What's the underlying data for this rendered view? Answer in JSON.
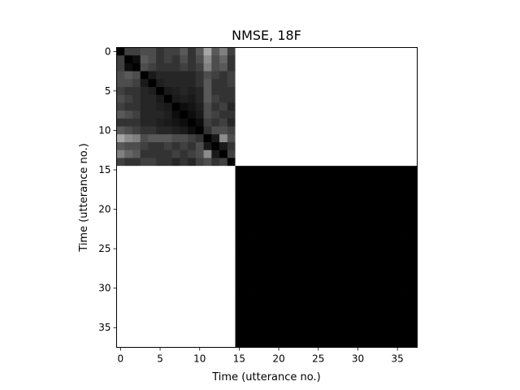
{
  "chart_data": {
    "type": "heatmap",
    "title": "NMSE, 18F",
    "xlabel": "Time (utterance no.)",
    "ylabel": "Time (utterance no.)",
    "n": 38,
    "xlim": [
      -0.5,
      37.5
    ],
    "ylim": [
      37.5,
      -0.5
    ],
    "x_ticks": [
      0,
      5,
      10,
      15,
      20,
      25,
      30,
      35
    ],
    "y_ticks": [
      0,
      5,
      10,
      15,
      20,
      25,
      30,
      35
    ],
    "colormap": "gray",
    "value_range": [
      0,
      1
    ],
    "block_size": 15,
    "block_matrix": [
      [
        0.0,
        0.25,
        0.25,
        0.3,
        0.3,
        0.2,
        0.25,
        0.25,
        0.35,
        0.2,
        0.35,
        0.65,
        0.35,
        0.5,
        0.25
      ],
      [
        0.25,
        0.0,
        0.05,
        0.35,
        0.3,
        0.2,
        0.25,
        0.2,
        0.3,
        0.2,
        0.3,
        0.55,
        0.3,
        0.4,
        0.2
      ],
      [
        0.25,
        0.05,
        0.0,
        0.3,
        0.25,
        0.2,
        0.2,
        0.2,
        0.25,
        0.2,
        0.25,
        0.5,
        0.3,
        0.35,
        0.2
      ],
      [
        0.3,
        0.35,
        0.3,
        0.0,
        0.1,
        0.15,
        0.15,
        0.15,
        0.15,
        0.15,
        0.2,
        0.3,
        0.25,
        0.2,
        0.25
      ],
      [
        0.3,
        0.3,
        0.25,
        0.1,
        0.0,
        0.12,
        0.15,
        0.15,
        0.15,
        0.15,
        0.2,
        0.35,
        0.2,
        0.2,
        0.25
      ],
      [
        0.25,
        0.2,
        0.2,
        0.15,
        0.12,
        0.0,
        0.1,
        0.12,
        0.15,
        0.12,
        0.15,
        0.35,
        0.2,
        0.2,
        0.2
      ],
      [
        0.3,
        0.25,
        0.2,
        0.15,
        0.15,
        0.1,
        0.0,
        0.1,
        0.12,
        0.1,
        0.15,
        0.35,
        0.25,
        0.2,
        0.2
      ],
      [
        0.25,
        0.2,
        0.2,
        0.15,
        0.15,
        0.12,
        0.1,
        0.0,
        0.05,
        0.08,
        0.12,
        0.3,
        0.2,
        0.25,
        0.15
      ],
      [
        0.35,
        0.3,
        0.25,
        0.15,
        0.15,
        0.15,
        0.12,
        0.05,
        0.0,
        0.05,
        0.1,
        0.3,
        0.25,
        0.2,
        0.2
      ],
      [
        0.2,
        0.2,
        0.2,
        0.15,
        0.15,
        0.12,
        0.1,
        0.08,
        0.05,
        0.0,
        0.05,
        0.25,
        0.2,
        0.25,
        0.15
      ],
      [
        0.35,
        0.3,
        0.25,
        0.2,
        0.2,
        0.15,
        0.15,
        0.12,
        0.1,
        0.05,
        0.0,
        0.2,
        0.3,
        0.3,
        0.25
      ],
      [
        0.65,
        0.55,
        0.5,
        0.3,
        0.35,
        0.35,
        0.35,
        0.3,
        0.3,
        0.25,
        0.2,
        0.0,
        0.1,
        0.55,
        0.3
      ],
      [
        0.35,
        0.3,
        0.3,
        0.25,
        0.2,
        0.2,
        0.25,
        0.2,
        0.25,
        0.2,
        0.3,
        0.1,
        0.0,
        0.1,
        0.2
      ],
      [
        0.5,
        0.4,
        0.35,
        0.2,
        0.2,
        0.2,
        0.2,
        0.25,
        0.2,
        0.25,
        0.3,
        0.55,
        0.1,
        0.0,
        0.25
      ],
      [
        0.25,
        0.2,
        0.2,
        0.25,
        0.25,
        0.2,
        0.2,
        0.15,
        0.2,
        0.15,
        0.25,
        0.3,
        0.2,
        0.25,
        0.0
      ]
    ],
    "off_block_value": 1.0,
    "lower_right_value": 0.0,
    "colors": {
      "background": "#ffffff",
      "frame": "#000000"
    }
  }
}
